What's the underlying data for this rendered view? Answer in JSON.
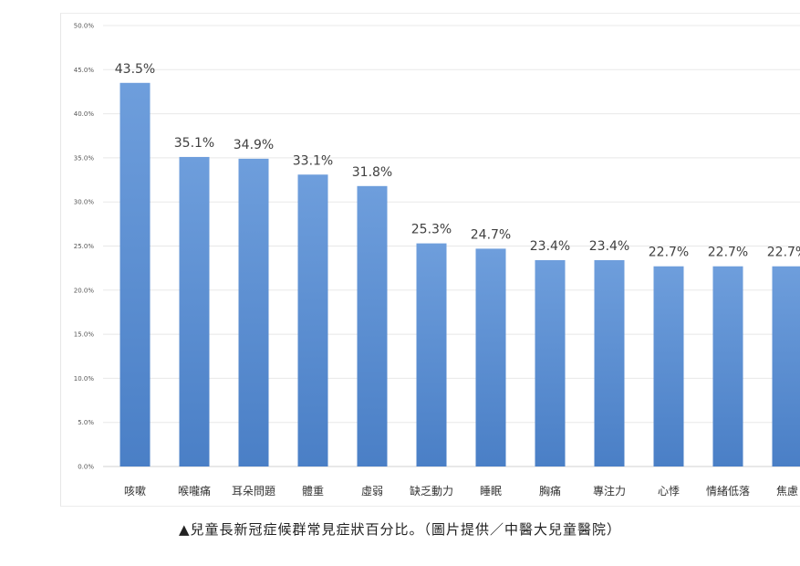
{
  "chart_data": {
    "type": "bar",
    "categories": [
      "咳嗽",
      "喉嚨痛",
      "耳朵問題",
      "體重",
      "虛弱",
      "缺乏動力",
      "睡眠",
      "胸痛",
      "專注力",
      "心悸",
      "情緒低落",
      "焦慮"
    ],
    "values": [
      43.5,
      35.1,
      34.9,
      33.1,
      31.8,
      25.3,
      24.7,
      23.4,
      23.4,
      22.7,
      22.7,
      22.7
    ],
    "data_labels": [
      "43.5%",
      "35.1%",
      "34.9%",
      "33.1%",
      "31.8%",
      "25.3%",
      "24.7%",
      "23.4%",
      "23.4%",
      "22.7%",
      "22.7%",
      "22.7%"
    ],
    "y_ticks": [
      "0.0%",
      "5.0%",
      "10.0%",
      "15.0%",
      "20.0%",
      "25.0%",
      "30.0%",
      "35.0%",
      "40.0%",
      "45.0%",
      "50.0%"
    ],
    "ylim": [
      0,
      50
    ],
    "grid": true,
    "bar_color": "#5b8fd6",
    "bar_color_top": "#6e9edc",
    "bar_color_bottom": "#4a7fc6"
  },
  "caption": "▲兒童長新冠症候群常見症狀百分比。（圖片提供／中醫大兒童醫院）"
}
